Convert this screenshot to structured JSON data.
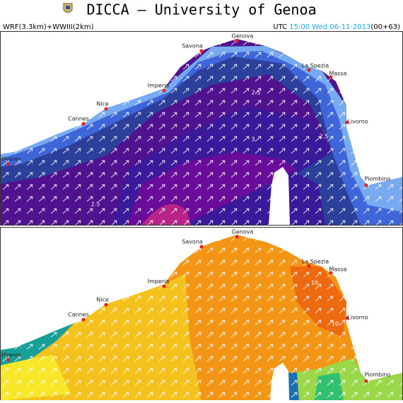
{
  "header": {
    "title": "DICCA — University of Genoa",
    "subtitle": "WRF(3.3km)+WWIII(2km)",
    "utc": "UTC",
    "datetime": "15:00 Wed 06-11-2013",
    "run": "(00+63)"
  },
  "panels": [
    {
      "cities": [
        "Genova",
        "Savona",
        "La Spezia",
        "Massa",
        "Imperia",
        "Nice",
        "Cannes",
        "Livorno",
        "Hyeres",
        "Piombino"
      ],
      "contour_labels": [
        "2.5",
        "3",
        "2.5",
        "2.5"
      ]
    },
    {
      "cities": [
        "Genova",
        "Savona",
        "La Spezia",
        "Massa",
        "Imperia",
        "Nice",
        "Cannes",
        "Livorno",
        "Hyeres",
        "Piombino"
      ],
      "contour_labels": [
        "10",
        "10"
      ]
    }
  ]
}
